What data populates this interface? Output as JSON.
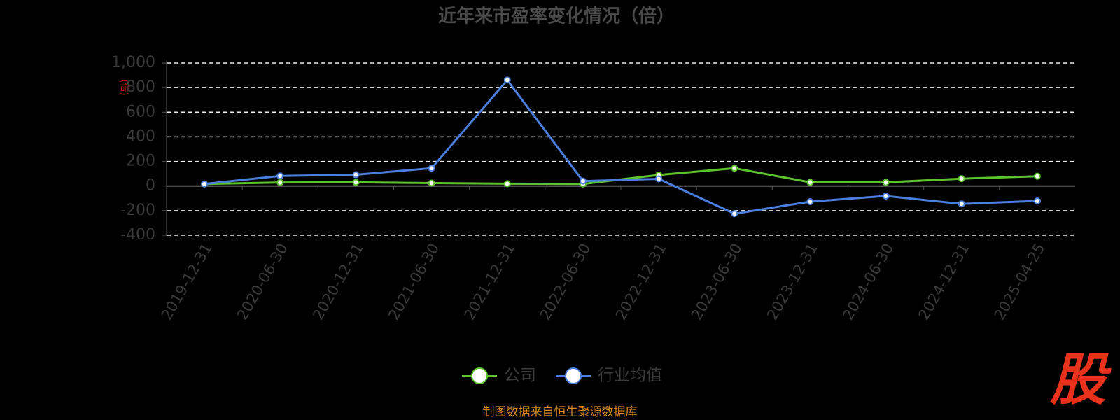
{
  "chart_data": {
    "type": "line",
    "title": "近年来市盈率变化情况（倍）",
    "y_label": "(倍)",
    "categories": [
      "2019-12-31",
      "2020-06-30",
      "2020-12-31",
      "2021-06-30",
      "2021-12-31",
      "2022-06-30",
      "2022-12-31",
      "2023-06-30",
      "2023-12-31",
      "2024-06-30",
      "2024-12-31",
      "2025-04-25"
    ],
    "series": [
      {
        "name": "公司",
        "color": "#5cc32c",
        "values": [
          17,
          29,
          30,
          24,
          19,
          17,
          90,
          145,
          30,
          30,
          60,
          80
        ]
      },
      {
        "name": "行业均值",
        "color": "#4a7fe0",
        "values": [
          17,
          82,
          92,
          145,
          861,
          40,
          58,
          -225,
          -127,
          -81,
          -145,
          -121
        ]
      }
    ],
    "ylim": [
      -400,
      1000
    ],
    "yticks": [
      -400,
      -200,
      0,
      200,
      400,
      600,
      800,
      {
        "value": 1000,
        "label": "1,000"
      }
    ],
    "grid": true,
    "legend": "bottom",
    "source": "制图数据来自恒生聚源数据库",
    "logo": "股"
  }
}
